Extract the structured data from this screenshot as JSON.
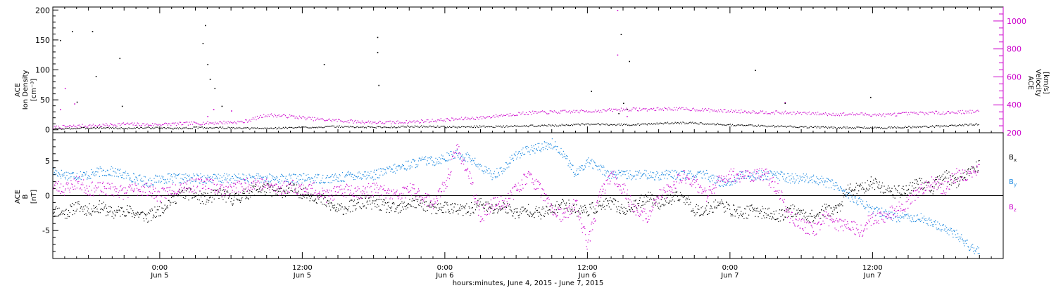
{
  "chart_data": [
    {
      "type": "scatter",
      "panel": "top",
      "ylabel_left": [
        "ACE",
        "Ion Density",
        "[cm⁻³]"
      ],
      "ylabel_right": [
        "ACE",
        "Velocity",
        "[km/s]"
      ],
      "ylim_left": [
        -5,
        205
      ],
      "yticks_left": [
        0,
        50,
        100,
        150,
        200
      ],
      "ylim_right": [
        200,
        1100
      ],
      "yticks_right": [
        200,
        400,
        600,
        800,
        1000
      ],
      "colors": {
        "density": "#000000",
        "velocity": "#cc00cc"
      },
      "series": [
        {
          "name": "",
          "color": "#000000",
          "axis": "left",
          "x_hours": [
            0,
            2,
            4,
            6,
            8,
            10,
            12,
            14,
            16,
            18,
            20,
            22,
            24,
            26,
            28,
            30,
            32,
            34,
            36,
            38,
            40,
            42,
            44,
            46,
            48,
            50,
            52,
            54,
            56,
            58,
            60,
            62,
            64,
            66,
            68,
            70,
            72,
            74,
            76,
            78
          ],
          "values": [
            2,
            3,
            4,
            3,
            4,
            3,
            4,
            4,
            3,
            3,
            4,
            5,
            6,
            5,
            5,
            6,
            6,
            5,
            6,
            6,
            7,
            8,
            9,
            10,
            9,
            10,
            12,
            12,
            10,
            8,
            7,
            6,
            5,
            4,
            4,
            4,
            5,
            6,
            8,
            10
          ],
          "outliers": [
            [
              0.6,
              150
            ],
            [
              1.6,
              165
            ],
            [
              3.3,
              165
            ],
            [
              3.6,
              90
            ],
            [
              2.0,
              47
            ],
            [
              5.6,
              120
            ],
            [
              5.8,
              40
            ],
            [
              12.6,
              145
            ],
            [
              12.8,
              175
            ],
            [
              13.0,
              110
            ],
            [
              13.2,
              85
            ],
            [
              13.6,
              70
            ],
            [
              14.2,
              40
            ],
            [
              22.8,
              110
            ],
            [
              27.3,
              155
            ],
            [
              27.3,
              130
            ],
            [
              27.4,
              75
            ],
            [
              45.3,
              65
            ],
            [
              47.8,
              160
            ],
            [
              48.5,
              115
            ],
            [
              47.6,
              28
            ],
            [
              48.0,
              45
            ],
            [
              48.3,
              35
            ],
            [
              59.1,
              100
            ],
            [
              61.6,
              45
            ],
            [
              68.8,
              55
            ]
          ]
        },
        {
          "name": "",
          "color": "#cc00cc",
          "axis": "right",
          "x_hours": [
            0,
            2,
            4,
            6,
            8,
            10,
            12,
            14,
            16,
            18,
            20,
            22,
            24,
            26,
            28,
            30,
            32,
            34,
            36,
            38,
            40,
            42,
            44,
            46,
            48,
            50,
            52,
            54,
            56,
            58,
            60,
            62,
            64,
            66,
            68,
            70,
            72,
            74,
            76,
            78
          ],
          "values": [
            240,
            250,
            255,
            265,
            260,
            265,
            270,
            275,
            280,
            330,
            320,
            300,
            290,
            280,
            275,
            280,
            290,
            300,
            310,
            330,
            345,
            350,
            355,
            360,
            370,
            370,
            375,
            370,
            360,
            355,
            350,
            345,
            340,
            335,
            335,
            330,
            340,
            345,
            350,
            355
          ],
          "outliers": [
            [
              0.6,
              370
            ],
            [
              1.0,
              520
            ],
            [
              1.8,
              410
            ],
            [
              13.0,
              320
            ],
            [
              13.5,
              370
            ],
            [
              15.0,
              360
            ],
            [
              47.5,
              1080
            ],
            [
              47.5,
              760
            ],
            [
              48.3,
              320
            ],
            [
              61.6,
              420
            ]
          ]
        }
      ],
      "xlim_hours": [
        0,
        80
      ]
    },
    {
      "type": "scatter",
      "panel": "bottom",
      "ylabel_left": [
        "ACE",
        "B",
        "[nT]"
      ],
      "ylim": [
        -9,
        9
      ],
      "yticks": [
        -5,
        0,
        5
      ],
      "legend": [
        {
          "label": "B",
          "sub": "x",
          "color": "#000000"
        },
        {
          "label": "B",
          "sub": "y",
          "color": "#1f8ae0"
        },
        {
          "label": "B",
          "sub": "z",
          "color": "#cc00cc"
        }
      ],
      "series": [
        {
          "name": "Bx",
          "color": "#000000",
          "x_hours": [
            0,
            1,
            2,
            3,
            4,
            5,
            6,
            7,
            8,
            9,
            10,
            11,
            12,
            13,
            14,
            15,
            16,
            17,
            18,
            19,
            20,
            21,
            22,
            23,
            24,
            25,
            26,
            27,
            28,
            29,
            30,
            31,
            32,
            33,
            34,
            35,
            36,
            37,
            38,
            39,
            40,
            41,
            42,
            43,
            44,
            45,
            46,
            47,
            48,
            49,
            50,
            51,
            52,
            53,
            54,
            55,
            56,
            57,
            58,
            59,
            60,
            61,
            62,
            63,
            64,
            65,
            66,
            67,
            68,
            69,
            70,
            71,
            72,
            73,
            74,
            75,
            76,
            77,
            78
          ],
          "values": [
            -2,
            -2.5,
            -1.5,
            -2,
            -1.5,
            -2.5,
            -2,
            -2.5,
            -3,
            -2,
            -0.5,
            0.5,
            0,
            -0.5,
            0.5,
            -0.5,
            0,
            1,
            1,
            0.5,
            1,
            0.5,
            0,
            -1,
            -2,
            -1.5,
            -1,
            -1,
            -1.5,
            -2,
            -1,
            -1,
            -2,
            -1.5,
            -2,
            -2,
            -1,
            -2,
            -1.5,
            -2.5,
            -2,
            -2.5,
            -2,
            -1,
            -2,
            -2,
            -1.5,
            -1,
            -2,
            -1.5,
            0,
            -1,
            -0.5,
            0,
            -2,
            -2,
            -1,
            -2,
            -2.5,
            -2,
            -2.5,
            -3,
            -2,
            -2.5,
            -3,
            -2,
            -2,
            1,
            1,
            2,
            1,
            0.5,
            1,
            2,
            1,
            3,
            2,
            3,
            4.5
          ]
        },
        {
          "name": "By",
          "color": "#1f8ae0",
          "x_hours": [
            0,
            1,
            2,
            3,
            4,
            5,
            6,
            7,
            8,
            9,
            10,
            11,
            12,
            13,
            14,
            15,
            16,
            17,
            18,
            19,
            20,
            21,
            22,
            23,
            24,
            25,
            26,
            27,
            28,
            29,
            30,
            31,
            32,
            33,
            34,
            35,
            36,
            37,
            38,
            39,
            40,
            41,
            42,
            43,
            44,
            45,
            46,
            47,
            48,
            49,
            50,
            51,
            52,
            53,
            54,
            55,
            56,
            57,
            58,
            59,
            60,
            61,
            62,
            63,
            64,
            65,
            66,
            67,
            68,
            69,
            70,
            71,
            72,
            73,
            74,
            75,
            76,
            77,
            78
          ],
          "values": [
            3.5,
            3,
            3,
            3,
            3.5,
            3.5,
            3,
            2.5,
            2,
            2.5,
            2.5,
            2.5,
            2.5,
            2.5,
            2.5,
            2.5,
            2.5,
            2.5,
            2.5,
            2.5,
            2.5,
            2.5,
            2.5,
            2.5,
            2.5,
            3,
            3,
            3,
            3.5,
            4,
            4.5,
            5,
            5,
            5.5,
            6,
            5.5,
            4,
            3,
            4,
            6,
            6.5,
            7,
            7.5,
            6,
            3,
            5,
            4,
            3,
            3,
            3,
            3,
            3,
            3,
            3,
            3,
            3,
            2,
            2,
            3,
            3,
            3,
            3,
            2.5,
            2.5,
            2.5,
            2,
            1.5,
            0,
            -1,
            -2,
            -2.5,
            -3,
            -3,
            -3,
            -4,
            -4.5,
            -5.5,
            -7,
            -8
          ]
        },
        {
          "name": "Bz",
          "color": "#cc00cc",
          "x_hours": [
            0,
            1,
            2,
            3,
            4,
            5,
            6,
            7,
            8,
            9,
            10,
            11,
            12,
            13,
            14,
            15,
            16,
            17,
            18,
            19,
            20,
            21,
            22,
            23,
            24,
            25,
            26,
            27,
            28,
            29,
            30,
            31,
            32,
            33,
            34,
            35,
            36,
            37,
            38,
            39,
            40,
            41,
            42,
            43,
            44,
            45,
            46,
            47,
            48,
            49,
            50,
            51,
            52,
            53,
            54,
            55,
            56,
            57,
            58,
            59,
            60,
            61,
            62,
            63,
            64,
            65,
            66,
            67,
            68,
            69,
            70,
            71,
            72,
            73,
            74,
            75,
            76,
            77,
            78
          ],
          "values": [
            1.5,
            1,
            2,
            1,
            1,
            1,
            0.5,
            1,
            1,
            0,
            1,
            1.5,
            1.5,
            2,
            1,
            1,
            1.5,
            2,
            1.5,
            1,
            1.5,
            1,
            1,
            0,
            0.5,
            1,
            0.5,
            1,
            0.5,
            0,
            1,
            0,
            -1,
            1.5,
            7,
            3,
            -3,
            -1,
            -1,
            1,
            3,
            1,
            -2,
            -3,
            -1,
            -7,
            0,
            3,
            1,
            -2,
            -3,
            0,
            1,
            3,
            2,
            0,
            2,
            3,
            3,
            3,
            3,
            1,
            -3,
            -4,
            -5,
            -3,
            -4,
            -4,
            -5,
            -3,
            -3,
            -2,
            -1,
            1,
            2,
            1,
            3,
            3,
            4
          ]
        }
      ],
      "xlim_hours": [
        0,
        80
      ]
    }
  ],
  "x_axis": {
    "tick_labels": [
      {
        "hour": 9,
        "time": "0:00",
        "day": "Jun 5"
      },
      {
        "hour": 21,
        "time": "12:00",
        "day": "Jun 5"
      },
      {
        "hour": 33,
        "time": "0:00",
        "day": "Jun 6"
      },
      {
        "hour": 45,
        "time": "12:00",
        "day": "Jun 6"
      },
      {
        "hour": 57,
        "time": "0:00",
        "day": "Jun 7"
      },
      {
        "hour": 69,
        "time": "12:00",
        "day": "Jun 7"
      }
    ],
    "xlabel": "hours:minutes, June  4, 2015 - June  7, 2015"
  }
}
